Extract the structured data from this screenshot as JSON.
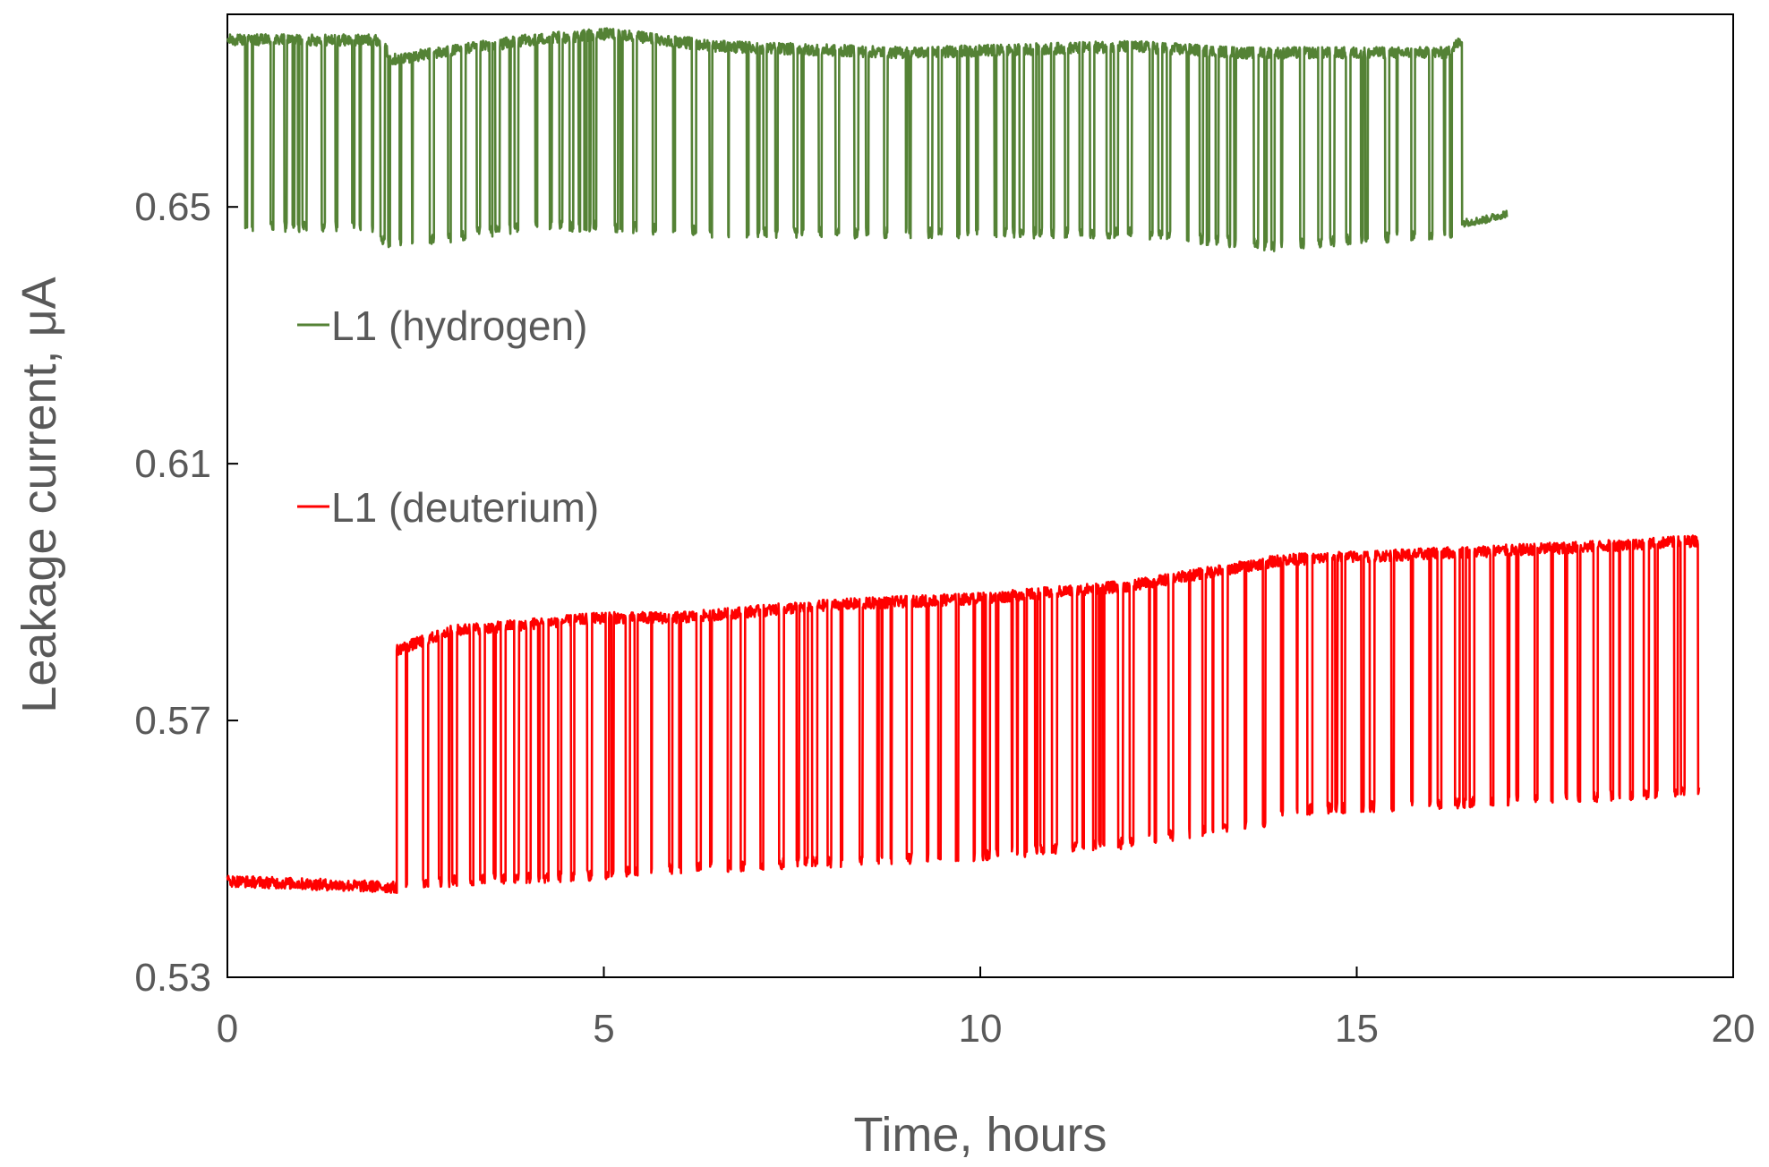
{
  "chart_data": {
    "type": "line",
    "title": "",
    "xlabel": "Time, hours",
    "ylabel": "Leakage current, μA",
    "xlim": [
      0,
      20
    ],
    "ylim": [
      0.53,
      0.68
    ],
    "xticks": [
      0,
      5,
      10,
      15,
      20
    ],
    "yticks": [
      0.53,
      0.57,
      0.61,
      0.65
    ],
    "xtick_labels": [
      "0",
      "5",
      "10",
      "15",
      "20"
    ],
    "ytick_labels": [
      "0.53",
      "0.57",
      "0.61",
      "0.65"
    ],
    "grid": false,
    "legend_position": "left, inside plot area",
    "series": [
      {
        "name": "L1 (hydrogen)",
        "color": "#548235",
        "x_range": [
          0,
          17.0
        ],
        "high_level": [
          [
            0,
            0.676
          ],
          [
            2.0,
            0.676
          ],
          [
            2.2,
            0.673
          ],
          [
            4.0,
            0.676
          ],
          [
            5.1,
            0.677
          ],
          [
            6.5,
            0.675
          ],
          [
            9.0,
            0.674
          ],
          [
            12.0,
            0.675
          ],
          [
            13.5,
            0.674
          ],
          [
            16.2,
            0.674
          ],
          [
            16.4,
            0.676
          ]
        ],
        "low_level": [
          [
            0,
            0.647
          ],
          [
            2.0,
            0.647
          ],
          [
            2.1,
            0.644
          ],
          [
            4.0,
            0.647
          ],
          [
            5.0,
            0.647
          ],
          [
            6.5,
            0.646
          ],
          [
            10.0,
            0.646
          ],
          [
            12.0,
            0.646
          ],
          [
            13.9,
            0.644
          ],
          [
            16.2,
            0.646
          ]
        ],
        "tail": [
          [
            16.4,
            0.6475
          ],
          [
            16.7,
            0.648
          ],
          [
            17.0,
            0.649
          ]
        ]
      },
      {
        "name": "L1 (deuterium)",
        "color": "#ff0000",
        "x_range": [
          0,
          19.55
        ],
        "high_level": [
          [
            0,
            0.547
          ],
          [
            2.2,
            0.546
          ],
          [
            2.25,
            0.581
          ],
          [
            3.0,
            0.584
          ],
          [
            4.0,
            0.585
          ],
          [
            5.0,
            0.586
          ],
          [
            6.0,
            0.586
          ],
          [
            8.0,
            0.588
          ],
          [
            10.0,
            0.589
          ],
          [
            12.0,
            0.591
          ],
          [
            13.0,
            0.593
          ],
          [
            14.0,
            0.595
          ],
          [
            16.0,
            0.596
          ],
          [
            18.0,
            0.597
          ],
          [
            19.55,
            0.598
          ]
        ],
        "low_level": [
          [
            0,
            0.545
          ],
          [
            2.25,
            0.544
          ],
          [
            3.0,
            0.545
          ],
          [
            5.0,
            0.546
          ],
          [
            6.0,
            0.547
          ],
          [
            8.0,
            0.548
          ],
          [
            10.0,
            0.549
          ],
          [
            12.0,
            0.551
          ],
          [
            13.0,
            0.553
          ],
          [
            13.9,
            0.554
          ],
          [
            14.0,
            0.556
          ],
          [
            16.0,
            0.557
          ],
          [
            18.0,
            0.558
          ],
          [
            19.3,
            0.559
          ]
        ]
      }
    ]
  }
}
